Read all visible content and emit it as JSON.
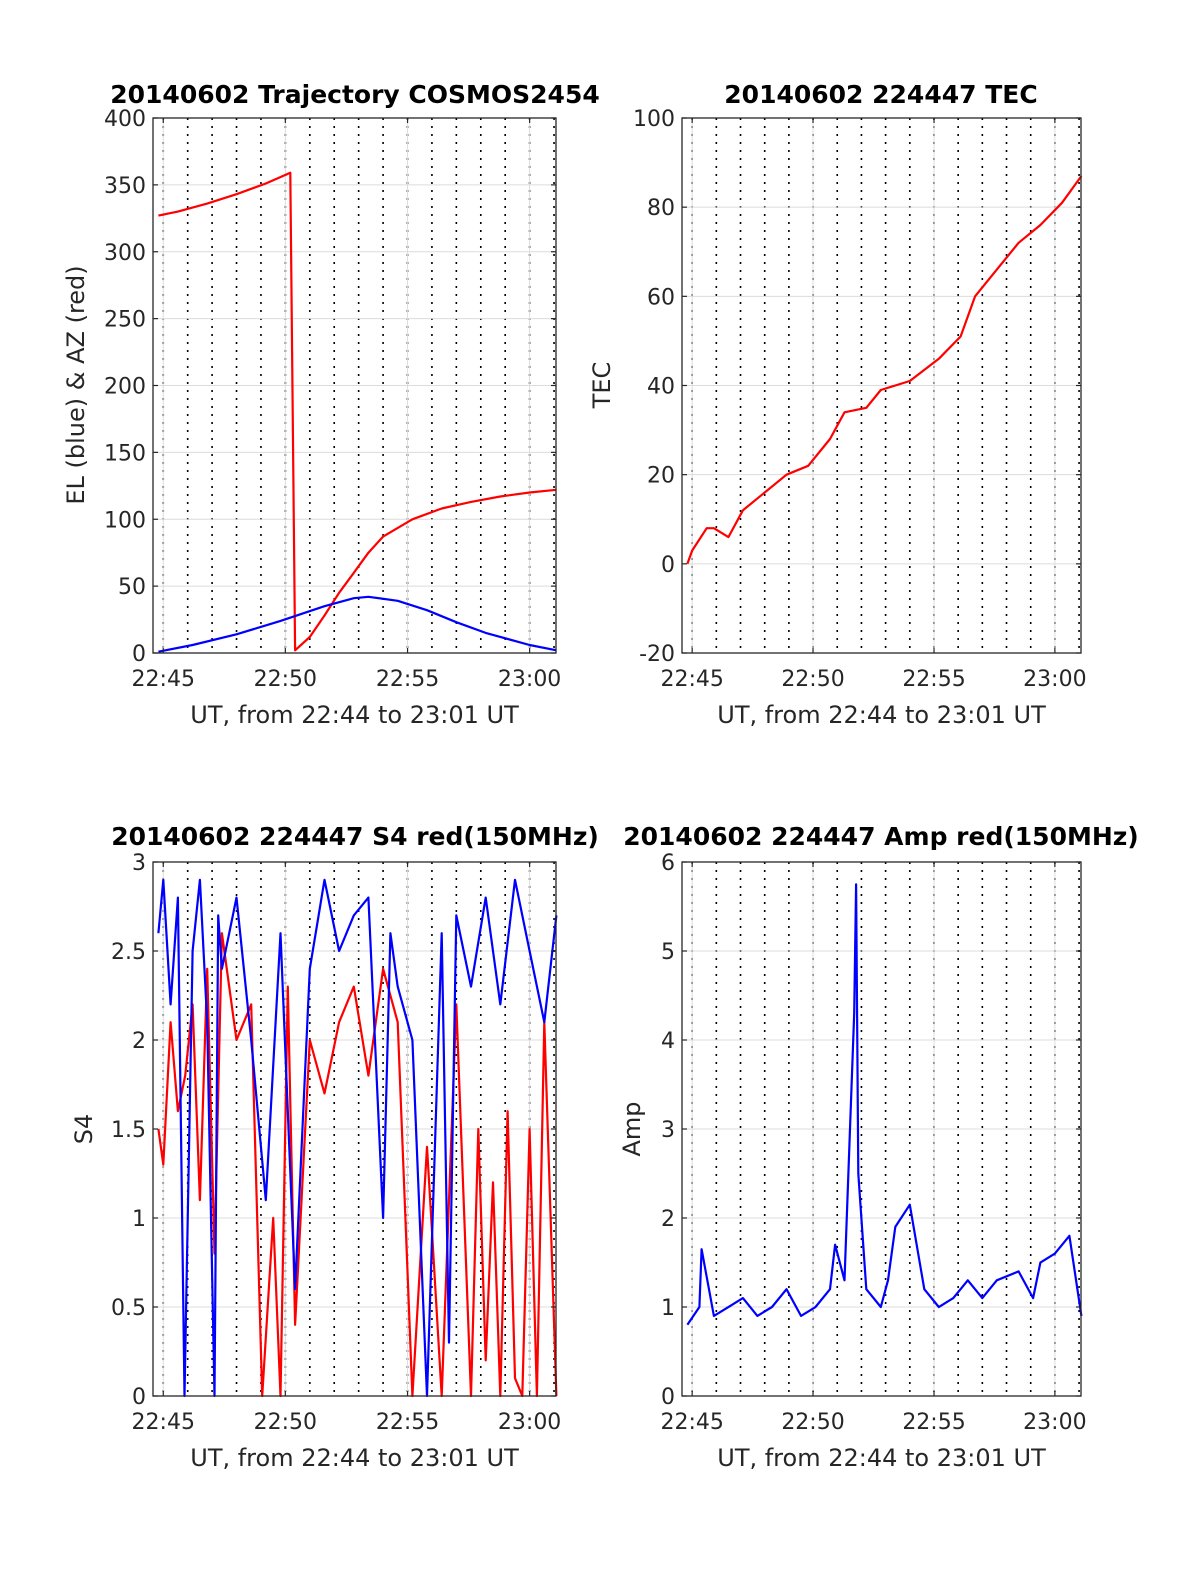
{
  "chart_data": [
    {
      "type": "line",
      "title": "20140602 Trajectory COSMOS2454",
      "xlabel": "UT, from 22:44 to 23:01 UT",
      "ylabel": "EL (blue) & AZ (red)",
      "xlim": [
        22.743,
        23.018
      ],
      "ylim": [
        0,
        400
      ],
      "x_ticks": [
        22.75,
        22.8333,
        22.9167,
        23.0
      ],
      "x_tick_labels": [
        "22:45",
        "22:50",
        "22:55",
        "23:00"
      ],
      "y_ticks": [
        0,
        50,
        100,
        150,
        200,
        250,
        300,
        350,
        400
      ],
      "y_tick_labels": [
        "0",
        "50",
        "100",
        "150",
        "200",
        "250",
        "300",
        "350",
        "400"
      ],
      "grid": true,
      "series": [
        {
          "color": "#ff0000",
          "x": [
            22.7467,
            22.76,
            22.78,
            22.8,
            22.82,
            22.8367,
            22.84,
            22.85,
            22.86,
            22.87,
            22.88,
            22.89,
            22.9,
            22.92,
            22.94,
            22.96,
            22.98,
            23.0,
            23.0183
          ],
          "y": [
            327,
            330,
            336,
            343,
            351,
            359,
            2,
            12,
            28,
            45,
            60,
            75,
            87,
            100,
            108,
            113,
            117,
            120,
            122
          ]
        },
        {
          "color": "#0000ff",
          "x": [
            22.7467,
            22.77,
            22.8,
            22.83,
            22.86,
            22.88,
            22.89,
            22.91,
            22.93,
            22.95,
            22.97,
            23.0,
            23.0183
          ],
          "y": [
            1,
            6,
            14,
            24,
            35,
            41,
            42,
            39,
            32,
            23,
            15,
            6,
            2
          ]
        }
      ]
    },
    {
      "type": "line",
      "title": "20140602 224447 TEC",
      "xlabel": "UT, from 22:44 to 23:01 UT",
      "ylabel": "TEC",
      "xlim": [
        22.743,
        23.018
      ],
      "ylim": [
        -20,
        100
      ],
      "x_ticks": [
        22.75,
        22.8333,
        22.9167,
        23.0
      ],
      "x_tick_labels": [
        "22:45",
        "22:50",
        "22:55",
        "23:00"
      ],
      "y_ticks": [
        -20,
        0,
        20,
        40,
        60,
        80,
        100
      ],
      "y_tick_labels": [
        "-20",
        "0",
        "20",
        "40",
        "60",
        "80",
        "100"
      ],
      "grid": true,
      "series": [
        {
          "color": "#ff0000",
          "x": [
            22.7467,
            22.75,
            22.76,
            22.765,
            22.775,
            22.785,
            22.8,
            22.815,
            22.83,
            22.845,
            22.855,
            22.87,
            22.88,
            22.89,
            22.9,
            22.92,
            22.935,
            22.945,
            22.96,
            22.975,
            22.99,
            23.005,
            23.0183
          ],
          "y": [
            0,
            3,
            8,
            8,
            6,
            12,
            16,
            20,
            22,
            28,
            34,
            35,
            39,
            40,
            41,
            46,
            51,
            60,
            66,
            72,
            76,
            81,
            87
          ]
        }
      ]
    },
    {
      "type": "line",
      "title": "20140602 224447 S4 red(150MHz)",
      "xlabel": "UT, from 22:44 to 23:01 UT",
      "ylabel": "S4",
      "xlim": [
        22.743,
        23.018
      ],
      "ylim": [
        0,
        3
      ],
      "x_ticks": [
        22.75,
        22.8333,
        22.9167,
        23.0
      ],
      "x_tick_labels": [
        "22:45",
        "22:50",
        "22:55",
        "23:00"
      ],
      "y_ticks": [
        0,
        0.5,
        1,
        1.5,
        2,
        2.5,
        3
      ],
      "y_tick_labels": [
        "0",
        "0.5",
        "1",
        "1.5",
        "2",
        "2.5",
        "3"
      ],
      "grid": true,
      "series": [
        {
          "color": "#ff0000",
          "x": [
            22.7467,
            22.75,
            22.755,
            22.76,
            22.765,
            22.77,
            22.775,
            22.78,
            22.785,
            22.79,
            22.8,
            22.81,
            22.8175,
            22.825,
            22.83,
            22.835,
            22.84,
            22.85,
            22.86,
            22.87,
            22.88,
            22.89,
            22.9,
            22.91,
            22.92,
            22.93,
            22.94,
            22.95,
            22.96,
            22.965,
            22.97,
            22.975,
            22.98,
            22.985,
            22.99,
            22.995,
            23.0,
            23.005,
            23.01,
            23.0183
          ],
          "y": [
            1.5,
            1.3,
            2.1,
            1.6,
            1.8,
            2.2,
            1.1,
            2.4,
            0.8,
            2.6,
            2.0,
            2.2,
            0.0,
            1.0,
            0.0,
            2.3,
            0.4,
            2.0,
            1.7,
            2.1,
            2.3,
            1.8,
            2.4,
            2.1,
            0.0,
            1.4,
            0.0,
            2.2,
            0.0,
            1.5,
            0.2,
            1.2,
            0.0,
            1.6,
            0.1,
            0.0,
            1.5,
            0.0,
            2.1,
            0.0
          ]
        },
        {
          "color": "#0000ff",
          "x": [
            22.7467,
            22.75,
            22.755,
            22.76,
            22.7645,
            22.77,
            22.775,
            22.78,
            22.785,
            22.7875,
            22.79,
            22.8,
            22.81,
            22.82,
            22.83,
            22.84,
            22.85,
            22.86,
            22.87,
            22.88,
            22.89,
            22.9,
            22.905,
            22.91,
            22.92,
            22.93,
            22.94,
            22.945,
            22.95,
            22.96,
            22.97,
            22.98,
            22.99,
            23.0,
            23.01,
            23.0183
          ],
          "y": [
            2.6,
            2.9,
            2.2,
            2.8,
            0.0,
            2.5,
            2.9,
            2.1,
            0.0,
            2.7,
            2.4,
            2.8,
            2.0,
            1.1,
            2.6,
            0.6,
            2.4,
            2.9,
            2.5,
            2.7,
            2.8,
            1.0,
            2.6,
            2.3,
            2.0,
            0.0,
            2.6,
            0.3,
            2.7,
            2.3,
            2.8,
            2.2,
            2.9,
            2.5,
            2.1,
            2.7
          ]
        }
      ]
    },
    {
      "type": "line",
      "title": "20140602 224447 Amp red(150MHz)",
      "xlabel": "UT, from 22:44 to 23:01 UT",
      "ylabel": "Amp",
      "xlim": [
        22.743,
        23.018
      ],
      "ylim": [
        0,
        6
      ],
      "x_ticks": [
        22.75,
        22.8333,
        22.9167,
        23.0
      ],
      "x_tick_labels": [
        "22:45",
        "22:50",
        "22:55",
        "23:00"
      ],
      "y_ticks": [
        0,
        1,
        2,
        3,
        4,
        5,
        6
      ],
      "y_tick_labels": [
        "0",
        "1",
        "2",
        "3",
        "4",
        "5",
        "6"
      ],
      "grid": true,
      "series": [
        {
          "color": "#0000ff",
          "x": [
            22.7467,
            22.755,
            22.7565,
            22.765,
            22.775,
            22.785,
            22.795,
            22.805,
            22.815,
            22.825,
            22.835,
            22.845,
            22.8485,
            22.855,
            22.8617,
            22.863,
            22.8645,
            22.87,
            22.88,
            22.885,
            22.89,
            22.9,
            22.91,
            22.92,
            22.93,
            22.94,
            22.95,
            22.96,
            22.975,
            22.985,
            22.99,
            23.0,
            23.01,
            23.0183
          ],
          "y": [
            0.8,
            1.0,
            1.65,
            0.9,
            1.0,
            1.1,
            0.9,
            1.0,
            1.2,
            0.9,
            1.0,
            1.2,
            1.7,
            1.3,
            4.3,
            5.75,
            2.5,
            1.2,
            1.0,
            1.3,
            1.9,
            2.15,
            1.2,
            1.0,
            1.1,
            1.3,
            1.1,
            1.3,
            1.4,
            1.1,
            1.5,
            1.6,
            1.8,
            0.9
          ]
        }
      ]
    }
  ]
}
